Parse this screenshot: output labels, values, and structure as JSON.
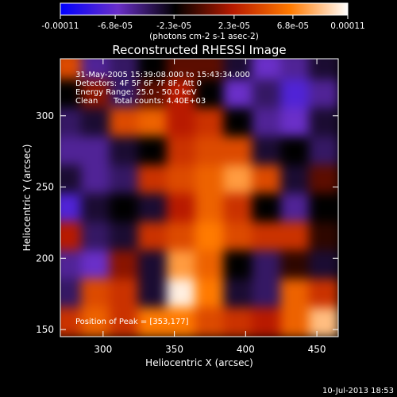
{
  "chart_data": {
    "type": "heatmap",
    "title": "Reconstructed RHESSI Image",
    "xlabel": "Heliocentric X (arcsec)",
    "ylabel": "Heliocentric Y (arcsec)",
    "xlim": [
      270,
      465
    ],
    "ylim": [
      145,
      340
    ],
    "x_ticks": [
      300,
      350,
      400,
      450
    ],
    "y_ticks": [
      150,
      200,
      250,
      300
    ],
    "x_tick_labels": [
      "300",
      "350",
      "400",
      "450"
    ],
    "y_tick_labels": [
      "150",
      "200",
      "250",
      "300"
    ],
    "colorbar": {
      "min": -0.00011,
      "max": 0.00011,
      "tick_values": [
        -0.00011,
        -6.8e-05,
        -2.3e-05,
        2.3e-05,
        6.8e-05,
        0.00011
      ],
      "tick_labels": [
        "-0.00011",
        "-6.8e-05",
        "-2.3e-05",
        "2.3e-05",
        "6.8e-05",
        "0.00011"
      ],
      "unit_label": "(photons cm-2 s-1 asec-2)",
      "stops": [
        "#0000ff",
        "#6a2fc8",
        "#000000",
        "#b81a00",
        "#ff7a00",
        "#ffffff"
      ]
    },
    "annotations": [
      "31-May-2005 15:39:08.000 to 15:43:34.000",
      "Detectors: 4F 5F 6F 7F 8F, Att 0",
      "Energy Range: 25.0 - 50.0 keV",
      "Clean",
      "Total counts: 4.40E+03"
    ],
    "peak_label": "Position of Peak = [353,177]",
    "peak": {
      "x": 353,
      "y": 177,
      "value": 0.00011
    },
    "grid_x": [
      275,
      295,
      315,
      335,
      355,
      375,
      395,
      415,
      435,
      455
    ],
    "grid_y": [
      335,
      315,
      295,
      275,
      255,
      235,
      215,
      195,
      175,
      155
    ],
    "values": [
      [
        0.4,
        -0.5,
        -0.4,
        -0.2,
        0.0,
        0.0,
        -0.3,
        -0.6,
        -0.5,
        -0.3
      ],
      [
        -0.2,
        0.1,
        -0.4,
        0.0,
        0.2,
        -0.2,
        -0.6,
        -0.4,
        -0.7,
        -0.5
      ],
      [
        -0.4,
        -0.3,
        0.4,
        0.5,
        0.2,
        0.3,
        -0.2,
        -0.5,
        -0.6,
        -0.3
      ],
      [
        -0.5,
        -0.5,
        -0.3,
        -0.2,
        0.3,
        0.4,
        0.4,
        -0.3,
        -0.2,
        -0.4
      ],
      [
        -0.3,
        -0.5,
        -0.4,
        0.3,
        0.4,
        0.5,
        0.7,
        0.4,
        -0.3,
        0.0
      ],
      [
        -0.7,
        -0.3,
        -0.2,
        -0.3,
        0.2,
        0.5,
        0.3,
        -0.2,
        -0.5,
        -0.2
      ],
      [
        0.2,
        -0.4,
        -0.3,
        0.3,
        0.4,
        0.6,
        0.4,
        0.3,
        0.3,
        -0.1
      ],
      [
        -0.5,
        -0.6,
        0.1,
        -0.3,
        0.7,
        0.5,
        -0.2,
        -0.4,
        -0.1,
        -0.3
      ],
      [
        -0.4,
        0.4,
        0.3,
        -0.3,
        0.95,
        0.6,
        -0.3,
        -0.4,
        0.5,
        0.3
      ],
      [
        0.3,
        0.5,
        0.3,
        0.6,
        0.6,
        0.4,
        0.3,
        0.2,
        0.5,
        0.8
      ]
    ]
  },
  "footer": {
    "timestamp": "10-Jul-2013 18:53"
  }
}
